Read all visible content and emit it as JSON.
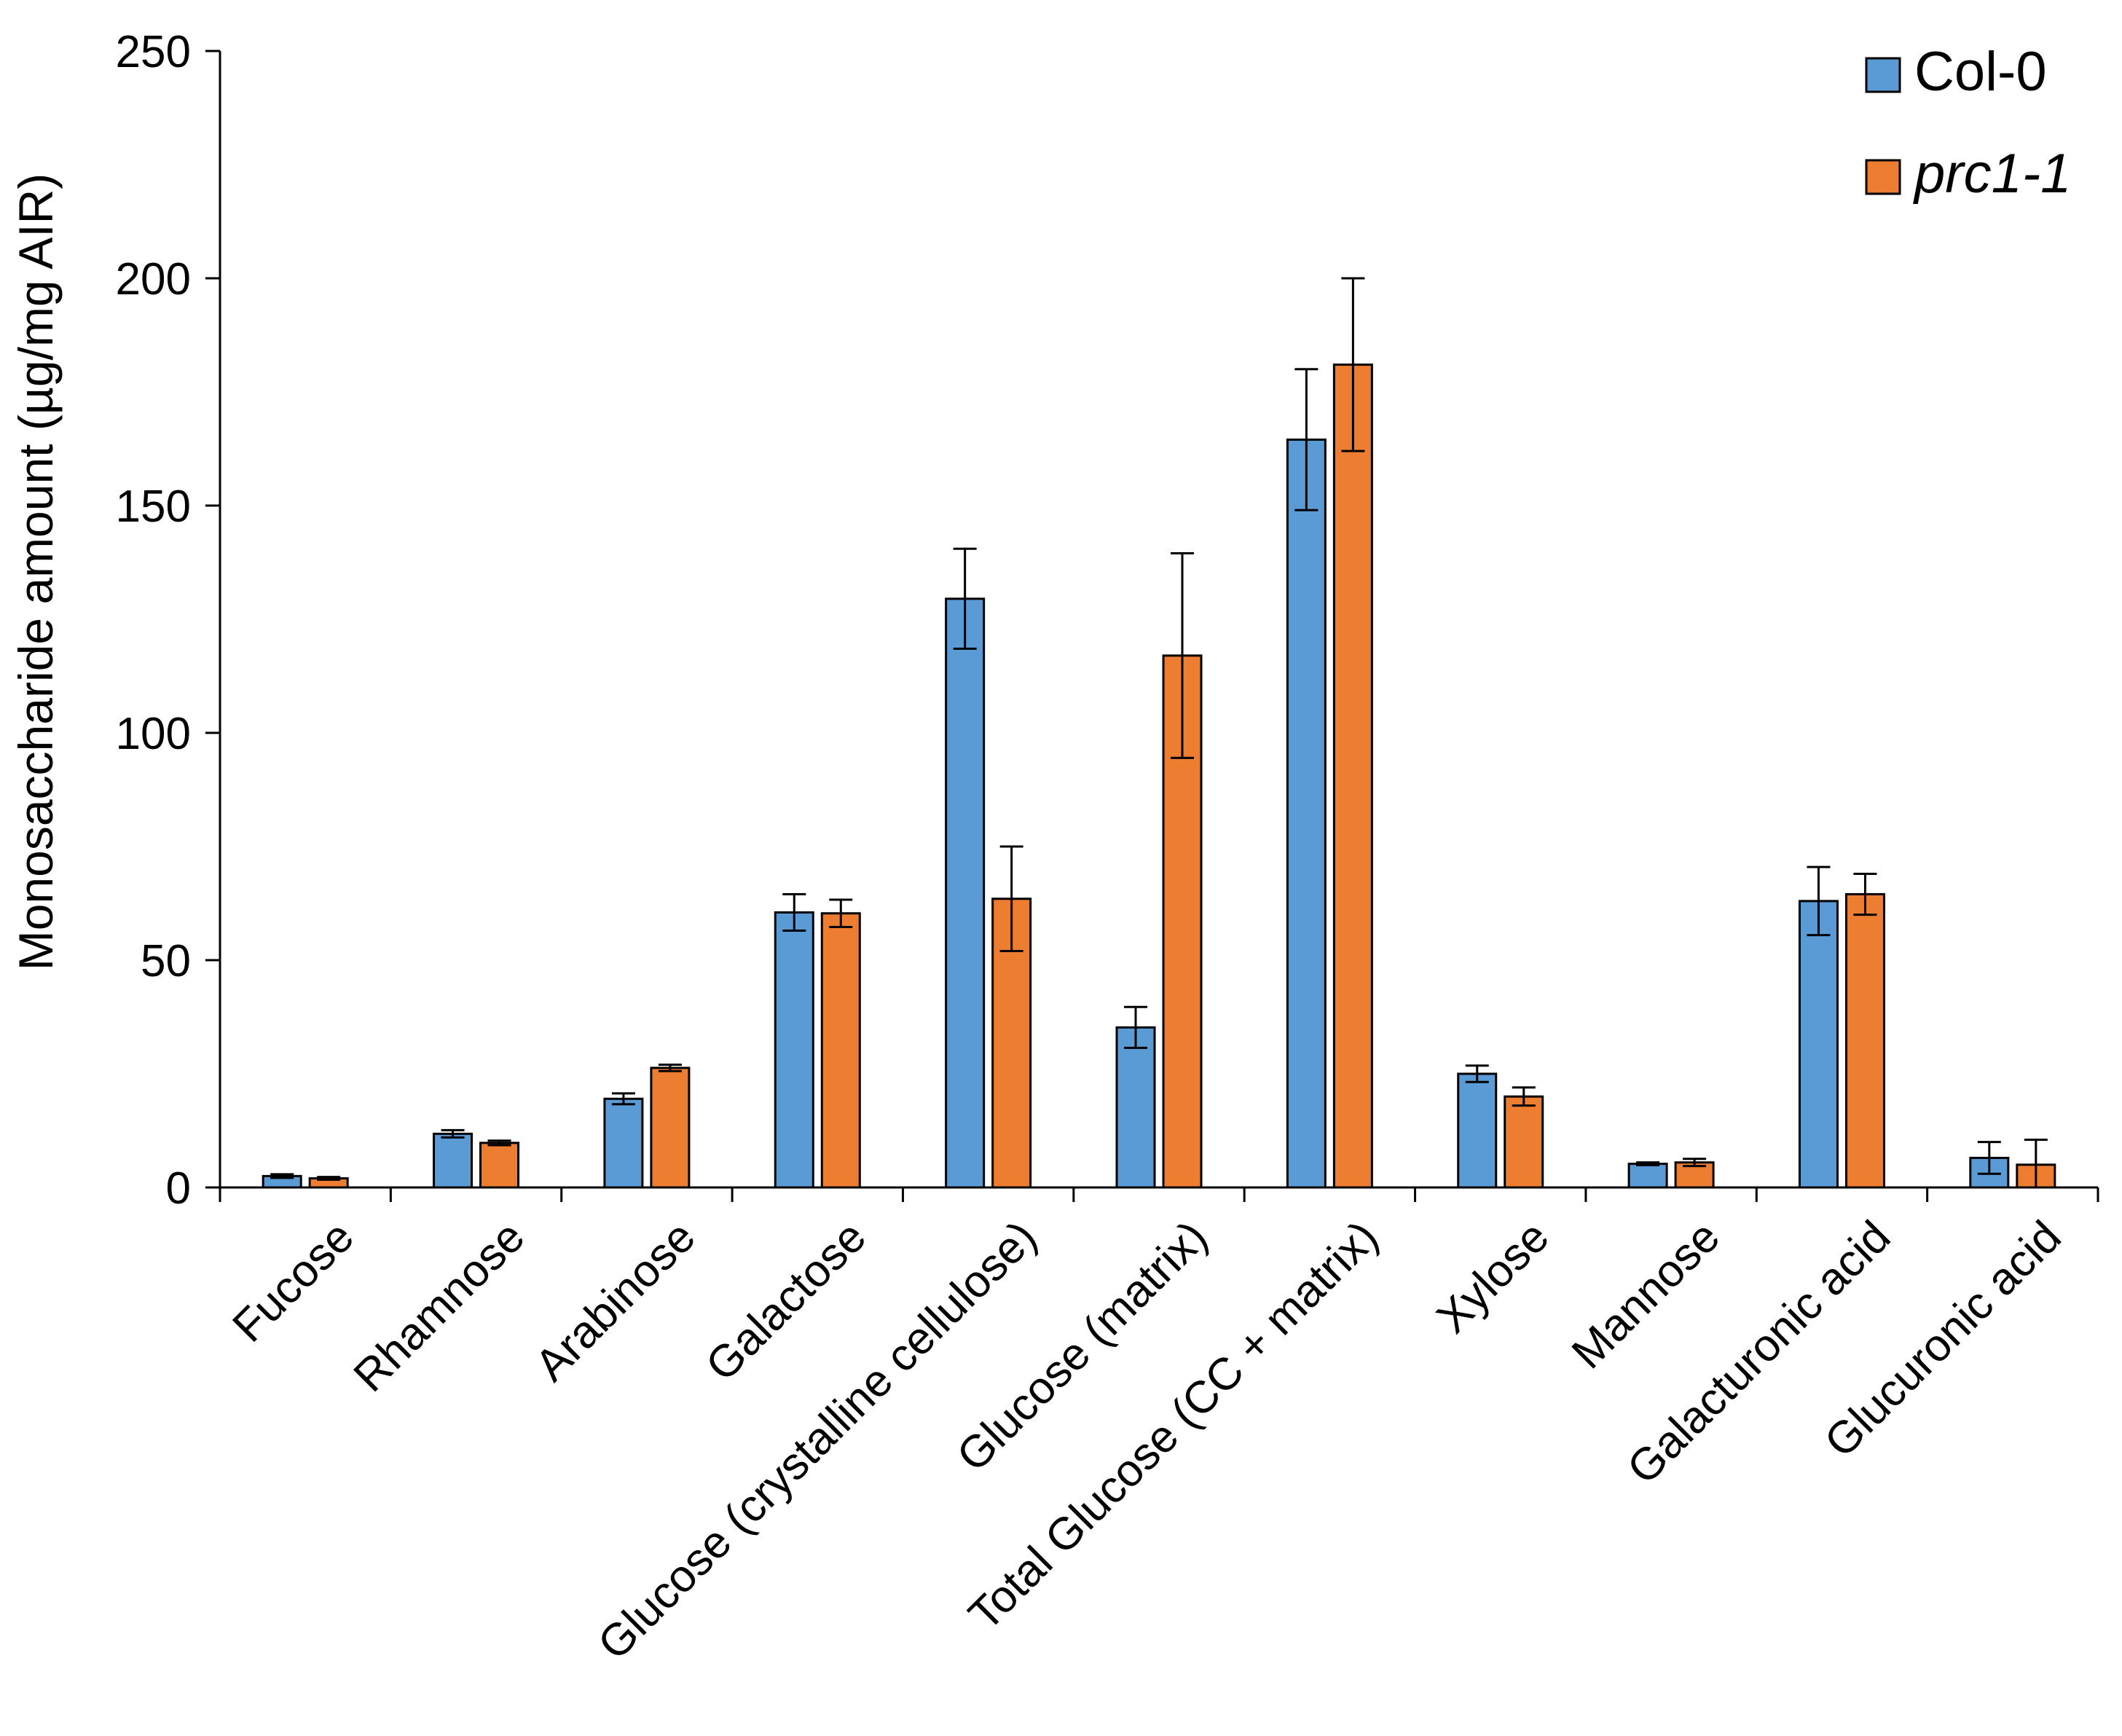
{
  "chart_data": {
    "type": "bar",
    "title": "",
    "xlabel": "",
    "ylabel": "Monosaccharide amount (µg/mg AIR)",
    "ylim": [
      0,
      250
    ],
    "yticks": [
      0,
      50,
      100,
      150,
      200,
      250
    ],
    "grid": false,
    "legend_position": "top-right",
    "categories": [
      "Fucose",
      "Rhamnose",
      "Arabinose",
      "Galactose",
      "Glucose (crystalline cellulose)",
      "Glucose (matrix)",
      "Total Glucose (CC + matrix)",
      "Xylose",
      "Mannose",
      "Galacturonic acid",
      "Glucuronic acid"
    ],
    "series": [
      {
        "name": "Col-0",
        "color": "#5B9BD5",
        "italic": false,
        "values": [
          2.5,
          11.8,
          19.5,
          60.5,
          129.5,
          35.2,
          164.5,
          25.0,
          5.2,
          63.0,
          6.5
        ],
        "errors": [
          0.4,
          0.8,
          1.2,
          4.0,
          11.0,
          4.5,
          15.5,
          1.8,
          0.3,
          7.5,
          3.5
        ]
      },
      {
        "name": "prc1-1",
        "color": "#ED7D31",
        "italic": true,
        "values": [
          2.0,
          9.8,
          26.3,
          60.3,
          63.5,
          117.0,
          181.0,
          20.0,
          5.5,
          64.5,
          5.0
        ],
        "errors": [
          0.3,
          0.5,
          0.7,
          3.0,
          11.5,
          22.5,
          19.0,
          2.0,
          0.8,
          4.5,
          5.5
        ]
      }
    ]
  }
}
